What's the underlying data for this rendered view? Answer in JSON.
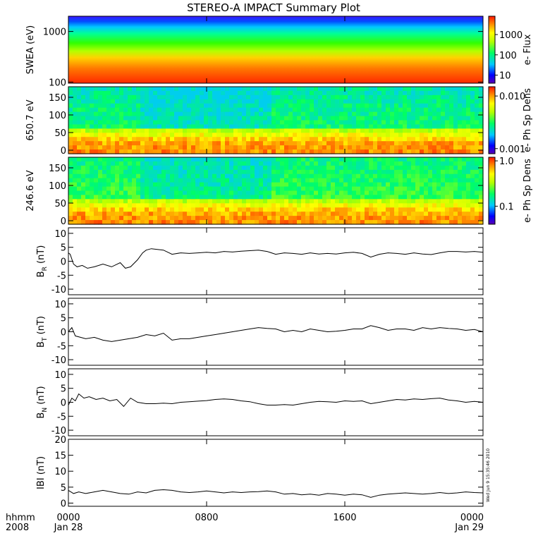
{
  "title": "STEREO-A IMPACT Summary Plot",
  "stamp": "Wed Jun  9 15:35:46 2010",
  "footer": {
    "label_top": "hhmm",
    "label_bottom": "2008"
  },
  "x_ticks": [
    {
      "top": "0000",
      "bottom": "Jan 28"
    },
    {
      "top": "0800",
      "bottom": ""
    },
    {
      "top": "1600",
      "bottom": ""
    },
    {
      "top": "0000",
      "bottom": "Jan 29"
    }
  ],
  "chart_data": [
    {
      "type": "heatmap",
      "panel": "swea",
      "ylabel": "SWEA (eV)",
      "y_scale": "log",
      "ylim": [
        95,
        2000
      ],
      "y_ticks": [
        "1000",
        "100"
      ],
      "y_tick_values": [
        1000,
        100
      ],
      "colorbar": {
        "label": "e- Flux",
        "scale": "log",
        "range": [
          4,
          8000
        ],
        "ticks": [
          "1000",
          "100",
          "10"
        ],
        "tick_values": [
          1000,
          100,
          10
        ]
      }
    },
    {
      "type": "heatmap",
      "panel": "pad650",
      "ylabel": "650.7 eV",
      "ylim": [
        -10,
        180
      ],
      "y_ticks": [
        "150",
        "100",
        "50",
        "0"
      ],
      "y_tick_values": [
        150,
        100,
        50,
        0
      ],
      "colorbar": {
        "label": "e- Ph Sp Dens",
        "scale": "log",
        "range": [
          0.0008,
          0.015
        ],
        "ticks": [
          "0.010",
          "0.001"
        ],
        "tick_values": [
          0.01,
          0.001
        ]
      }
    },
    {
      "type": "heatmap",
      "panel": "pad246",
      "ylabel": "246.6 eV",
      "ylim": [
        -10,
        180
      ],
      "y_ticks": [
        "150",
        "100",
        "50",
        "0"
      ],
      "y_tick_values": [
        150,
        100,
        50,
        0
      ],
      "colorbar": {
        "label": "e- Ph Sp Dens",
        "scale": "log",
        "range": [
          0.04,
          1.2
        ],
        "ticks": [
          "1.0",
          "0.1"
        ],
        "tick_values": [
          1.0,
          0.1
        ]
      }
    },
    {
      "type": "line",
      "panel": "br",
      "ylabel": "BR (nT)",
      "ylabel_main": "B",
      "ylabel_sub": "R",
      "ylabel_unit": " (nT)",
      "ylim": [
        -12,
        12
      ],
      "y_ticks": [
        "10",
        "5",
        "0",
        "-5",
        "-10"
      ],
      "y_tick_values": [
        10,
        5,
        0,
        -5,
        -10
      ],
      "x_hours": [
        0,
        0.1,
        0.3,
        0.5,
        0.8,
        1.1,
        1.5,
        2,
        2.5,
        3,
        3.3,
        3.6,
        4,
        4.3,
        4.5,
        4.8,
        5.5,
        6,
        6.5,
        7,
        7.5,
        8,
        8.5,
        9,
        9.5,
        10,
        10.5,
        11,
        11.5,
        12,
        12.5,
        13,
        13.5,
        14,
        14.5,
        15,
        15.5,
        16,
        16.5,
        17,
        17.5,
        18,
        18.5,
        19,
        19.5,
        20,
        20.5,
        21,
        21.5,
        22,
        22.5,
        23,
        23.5,
        24
      ],
      "values": [
        3,
        2.5,
        -1,
        -2,
        -1.5,
        -2.5,
        -2,
        -1,
        -2,
        -0.5,
        -2.5,
        -2,
        0.5,
        3,
        4,
        4.5,
        4,
        2.5,
        3,
        2.8,
        3,
        3.2,
        3,
        3.5,
        3.3,
        3.6,
        3.8,
        4,
        3.5,
        2.5,
        3,
        2.8,
        2.5,
        3,
        2.6,
        2.8,
        2.6,
        3,
        3.2,
        2.8,
        1.5,
        2.5,
        3,
        2.8,
        2.5,
        3,
        2.6,
        2.4,
        3,
        3.5,
        3.5,
        3.3,
        3.5,
        3.2
      ]
    },
    {
      "type": "line",
      "panel": "bt",
      "ylabel": "BT (nT)",
      "ylabel_main": "B",
      "ylabel_sub": "T",
      "ylabel_unit": " (nT)",
      "ylim": [
        -12,
        12
      ],
      "y_ticks": [
        "10",
        "5",
        "0",
        "-5",
        "-10"
      ],
      "y_tick_values": [
        10,
        5,
        0,
        -5,
        -10
      ],
      "x_hours": [
        0,
        0.2,
        0.4,
        0.7,
        1,
        1.5,
        2,
        2.5,
        3,
        3.5,
        4,
        4.5,
        5,
        5.5,
        6,
        6.5,
        7,
        7.5,
        8,
        8.5,
        9,
        9.5,
        10,
        10.5,
        11,
        11.5,
        12,
        12.5,
        13,
        13.5,
        14,
        14.5,
        15,
        15.5,
        16,
        16.5,
        17,
        17.5,
        18,
        18.5,
        19,
        19.5,
        20,
        20.5,
        21,
        21.5,
        22,
        22.5,
        23,
        23.5,
        24
      ],
      "values": [
        0,
        1.5,
        -1.5,
        -2,
        -2.5,
        -2,
        -3,
        -3.5,
        -3,
        -2.5,
        -2,
        -1,
        -1.5,
        -0.5,
        -3,
        -2.5,
        -2.5,
        -2,
        -1.5,
        -1,
        -0.5,
        0,
        0.5,
        1,
        1.5,
        1.2,
        1,
        0,
        0.5,
        0,
        1,
        0.5,
        0,
        0.2,
        0.5,
        1,
        1,
        2.2,
        1.5,
        0.5,
        1,
        1,
        0.5,
        1.5,
        1,
        1.5,
        1.2,
        1,
        0.5,
        0.8,
        0
      ]
    },
    {
      "type": "line",
      "panel": "bn",
      "ylabel": "BN (nT)",
      "ylabel_main": "B",
      "ylabel_sub": "N",
      "ylabel_unit": " (nT)",
      "ylim": [
        -12,
        12
      ],
      "y_ticks": [
        "10",
        "5",
        "0",
        "-5",
        "-10"
      ],
      "y_tick_values": [
        10,
        5,
        0,
        -5,
        -10
      ],
      "x_hours": [
        0,
        0.2,
        0.4,
        0.6,
        0.9,
        1.2,
        1.6,
        2,
        2.4,
        2.8,
        3.2,
        3.6,
        4,
        4.5,
        5,
        5.5,
        6,
        6.5,
        7,
        7.5,
        8,
        8.5,
        9,
        9.5,
        10,
        10.5,
        11,
        11.5,
        12,
        12.5,
        13,
        13.5,
        14,
        14.5,
        15,
        15.5,
        16,
        16.5,
        17,
        17.5,
        18,
        18.5,
        19,
        19.5,
        20,
        20.5,
        21,
        21.5,
        22,
        22.5,
        23,
        23.5,
        24
      ],
      "values": [
        -1,
        1.5,
        0.5,
        3,
        1.5,
        2,
        1,
        1.5,
        0.5,
        1,
        -1.5,
        1.5,
        0,
        -0.5,
        -0.5,
        -0.3,
        -0.5,
        0,
        0.2,
        0.4,
        0.6,
        1,
        1.2,
        1,
        0.5,
        0.2,
        -0.5,
        -1,
        -1,
        -0.8,
        -1,
        -0.5,
        0,
        0.3,
        0.2,
        0,
        0.5,
        0.3,
        0.5,
        -0.5,
        0,
        0.5,
        1,
        0.8,
        1.2,
        1,
        1.3,
        1.5,
        0.8,
        0.5,
        0,
        0.3,
        0
      ]
    },
    {
      "type": "line",
      "panel": "bmag",
      "ylabel": "IBI (nT)",
      "ylabel_main": "IBI (nT)",
      "ylabel_sub": "",
      "ylabel_unit": "",
      "ylim": [
        -1,
        20
      ],
      "y_ticks": [
        "20",
        "15",
        "10",
        "5",
        "0"
      ],
      "y_tick_values": [
        20,
        15,
        10,
        5,
        0
      ],
      "x_hours": [
        0,
        0.3,
        0.6,
        1,
        1.5,
        2,
        2.5,
        3,
        3.5,
        4,
        4.5,
        5,
        5.5,
        6,
        6.5,
        7,
        7.5,
        8,
        8.5,
        9,
        9.5,
        10,
        10.5,
        11,
        11.5,
        12,
        12.5,
        13,
        13.5,
        14,
        14.5,
        15,
        15.5,
        16,
        16.5,
        17,
        17.5,
        18,
        18.5,
        19,
        19.5,
        20,
        20.5,
        21,
        21.5,
        22,
        22.5,
        23,
        23.5,
        24
      ],
      "values": [
        4,
        3,
        3.5,
        3,
        3.5,
        4,
        3.5,
        3,
        2.8,
        3.5,
        3.2,
        4,
        4.2,
        4,
        3.5,
        3.3,
        3.5,
        3.8,
        3.5,
        3.2,
        3.5,
        3.3,
        3.5,
        3.6,
        3.8,
        3.5,
        2.8,
        3,
        2.6,
        2.8,
        2.5,
        3,
        2.8,
        2.5,
        2.8,
        2.6,
        1.8,
        2.5,
        2.8,
        3,
        3.2,
        3,
        2.8,
        3,
        3.3,
        3,
        3.2,
        3.5,
        3.3,
        3.2
      ]
    }
  ]
}
